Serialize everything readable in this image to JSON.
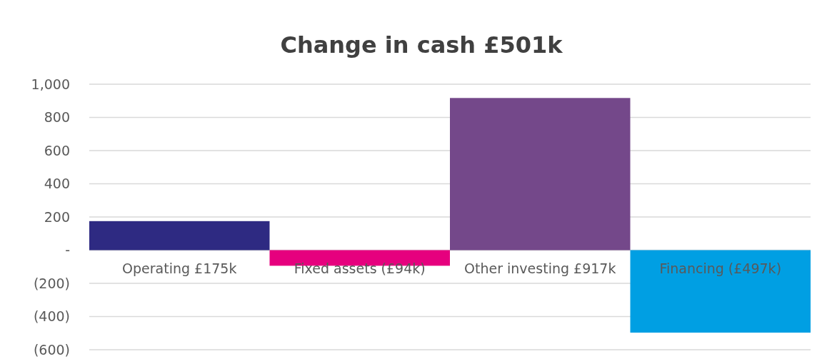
{
  "chart_data": {
    "type": "bar",
    "title": "Change in cash £501k",
    "categories": [
      "Operating £175k",
      "Fixed assets (£94k)",
      "Other investing £917k",
      "Financing (£497k)"
    ],
    "values": [
      175,
      -94,
      917,
      -497
    ],
    "colors": [
      "#2e2a82",
      "#e6007e",
      "#74488a",
      "#009fe3"
    ],
    "ylim": [
      -600,
      1000
    ],
    "yticks": [
      {
        "value": -600,
        "label": "(600)"
      },
      {
        "value": -400,
        "label": "(400)"
      },
      {
        "value": -200,
        "label": "(200)"
      },
      {
        "value": 0,
        "label": "-"
      },
      {
        "value": 200,
        "label": "200"
      },
      {
        "value": 400,
        "label": "400"
      },
      {
        "value": 600,
        "label": "600"
      },
      {
        "value": 800,
        "label": "800"
      },
      {
        "value": 1000,
        "label": "1,000"
      }
    ],
    "grid": "y"
  }
}
